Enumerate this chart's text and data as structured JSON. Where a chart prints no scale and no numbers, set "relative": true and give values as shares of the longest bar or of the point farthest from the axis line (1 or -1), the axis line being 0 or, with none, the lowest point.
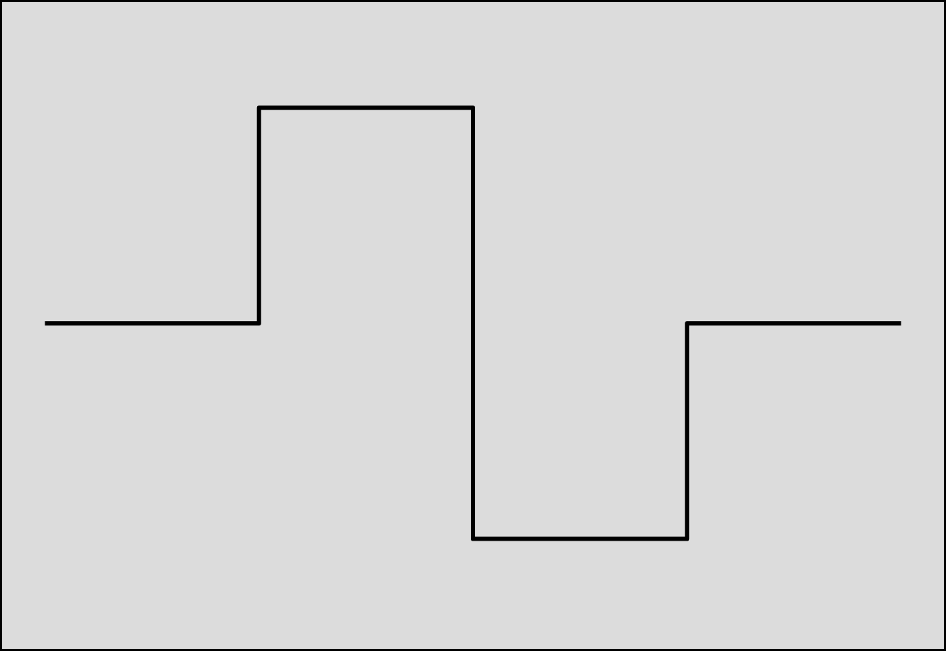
{
  "chart_data": {
    "type": "step",
    "relative": true,
    "categories": [
      null,
      null,
      null,
      null,
      null
    ],
    "series": [
      {
        "color": "#000000",
        "values": [
          0.5,
          1,
          0,
          0.5,
          0.5
        ]
      }
    ]
  }
}
